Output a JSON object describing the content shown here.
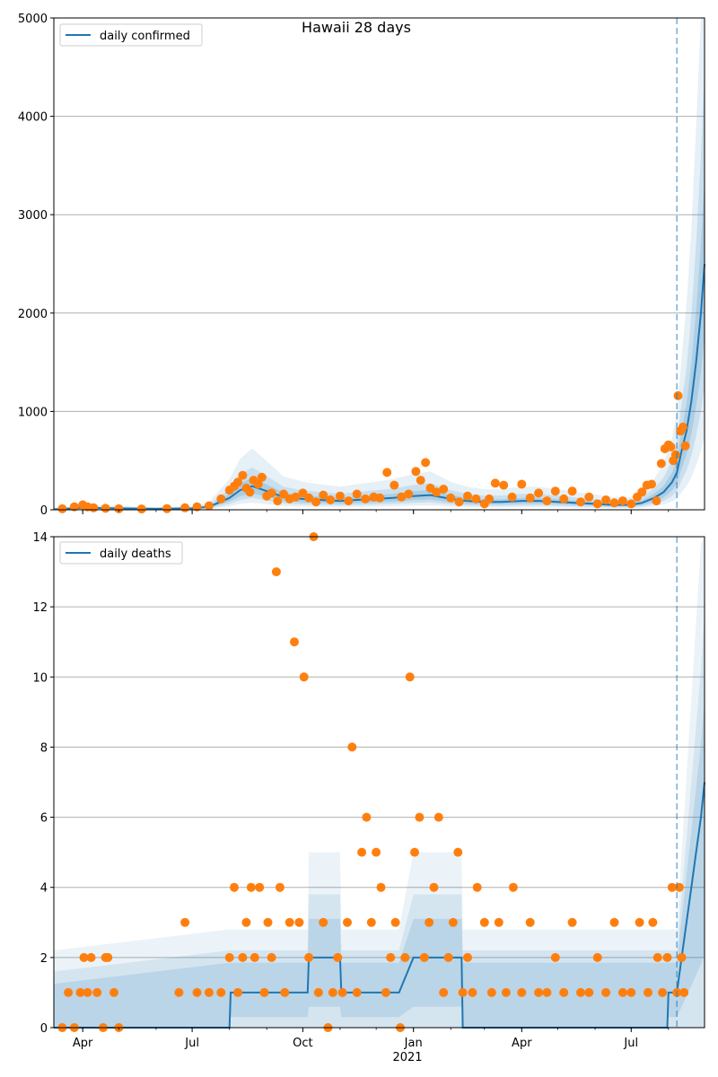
{
  "chart_data": [
    {
      "type": "line",
      "title": "Hawaii 28 days",
      "xlabel": "",
      "ylabel": "",
      "ylim": [
        0,
        5000
      ],
      "xlim": [
        "2020-03-08",
        "2021-08-31"
      ],
      "grid": "horizontal",
      "legend_position": "top-left",
      "yticks": [
        "0",
        "1000",
        "2000",
        "3000",
        "4000",
        "5000"
      ],
      "yticks_values": [
        0,
        1000,
        2000,
        3000,
        4000,
        5000
      ],
      "xticks": [],
      "forecast_start": "2021-08-08",
      "series": [
        {
          "name": "daily confirmed",
          "kind": "line",
          "color": "#1f77b4",
          "x": [
            "2020-03-08",
            "2020-04-01",
            "2020-05-01",
            "2020-06-01",
            "2020-07-01",
            "2020-07-15",
            "2020-08-01",
            "2020-08-10",
            "2020-08-20",
            "2020-09-01",
            "2020-09-15",
            "2020-10-01",
            "2020-10-15",
            "2020-11-01",
            "2020-11-15",
            "2020-12-01",
            "2020-12-15",
            "2021-01-01",
            "2021-01-15",
            "2021-02-01",
            "2021-02-15",
            "2021-03-01",
            "2021-03-15",
            "2021-04-01",
            "2021-04-15",
            "2021-05-01",
            "2021-05-15",
            "2021-06-01",
            "2021-06-15",
            "2021-07-01",
            "2021-07-10",
            "2021-07-20",
            "2021-07-28",
            "2021-08-04",
            "2021-08-08",
            "2021-08-12",
            "2021-08-16",
            "2021-08-20",
            "2021-08-24",
            "2021-08-28",
            "2021-08-31"
          ],
          "y": [
            5,
            20,
            15,
            10,
            15,
            30,
            120,
            200,
            240,
            190,
            130,
            110,
            100,
            90,
            100,
            110,
            120,
            140,
            150,
            110,
            90,
            80,
            80,
            90,
            90,
            80,
            70,
            60,
            50,
            50,
            70,
            120,
            180,
            280,
            380,
            600,
            800,
            1100,
            1500,
            2000,
            2500
          ]
        },
        {
          "name": "",
          "kind": "points",
          "color": "#ff7f0e",
          "x": [
            "2020-03-15",
            "2020-03-25",
            "2020-04-01",
            "2020-04-05",
            "2020-04-10",
            "2020-04-20",
            "2020-05-01",
            "2020-05-20",
            "2020-06-10",
            "2020-06-25",
            "2020-07-05",
            "2020-07-15",
            "2020-07-25",
            "2020-08-01",
            "2020-08-05",
            "2020-08-08",
            "2020-08-12",
            "2020-08-15",
            "2020-08-18",
            "2020-08-21",
            "2020-08-25",
            "2020-08-28",
            "2020-09-01",
            "2020-09-05",
            "2020-09-10",
            "2020-09-15",
            "2020-09-20",
            "2020-09-25",
            "2020-10-01",
            "2020-10-06",
            "2020-10-12",
            "2020-10-18",
            "2020-10-24",
            "2020-11-01",
            "2020-11-08",
            "2020-11-15",
            "2020-11-22",
            "2020-11-29",
            "2020-12-04",
            "2020-12-10",
            "2020-12-16",
            "2020-12-22",
            "2020-12-28",
            "2021-01-03",
            "2021-01-07",
            "2021-01-11",
            "2021-01-15",
            "2021-01-20",
            "2021-01-26",
            "2021-02-01",
            "2021-02-08",
            "2021-02-15",
            "2021-02-22",
            "2021-03-01",
            "2021-03-05",
            "2021-03-10",
            "2021-03-17",
            "2021-03-24",
            "2021-04-01",
            "2021-04-08",
            "2021-04-15",
            "2021-04-22",
            "2021-04-29",
            "2021-05-06",
            "2021-05-13",
            "2021-05-20",
            "2021-05-27",
            "2021-06-03",
            "2021-06-10",
            "2021-06-17",
            "2021-06-24",
            "2021-07-01",
            "2021-07-06",
            "2021-07-10",
            "2021-07-14",
            "2021-07-18",
            "2021-07-22",
            "2021-07-26",
            "2021-07-29",
            "2021-08-01",
            "2021-08-03",
            "2021-08-05",
            "2021-08-07",
            "2021-08-09",
            "2021-08-11",
            "2021-08-13",
            "2021-08-15"
          ],
          "y": [
            10,
            30,
            50,
            30,
            20,
            15,
            10,
            8,
            12,
            20,
            30,
            40,
            110,
            200,
            240,
            280,
            350,
            220,
            180,
            300,
            260,
            330,
            140,
            170,
            90,
            160,
            110,
            130,
            170,
            120,
            80,
            150,
            100,
            140,
            90,
            160,
            110,
            130,
            120,
            380,
            250,
            130,
            160,
            390,
            300,
            480,
            220,
            180,
            210,
            120,
            80,
            140,
            110,
            60,
            110,
            270,
            250,
            130,
            260,
            120,
            170,
            90,
            190,
            110,
            190,
            80,
            130,
            60,
            100,
            70,
            90,
            60,
            130,
            180,
            250,
            260,
            90,
            470,
            620,
            660,
            640,
            500,
            560,
            1160,
            800,
            840,
            650
          ]
        }
      ]
    },
    {
      "type": "line",
      "title": "",
      "xlabel": "",
      "ylabel": "",
      "ylim": [
        0,
        14
      ],
      "xlim": [
        "2020-03-08",
        "2021-08-31"
      ],
      "grid": "horizontal",
      "legend_position": "top-left",
      "yticks": [
        "0",
        "2",
        "4",
        "6",
        "8",
        "10",
        "12",
        "14"
      ],
      "yticks_values": [
        0,
        2,
        4,
        6,
        8,
        10,
        12,
        14
      ],
      "xticks": [
        "Apr",
        "Jul",
        "Oct",
        "Jan",
        "Apr",
        "Jul"
      ],
      "xticks_dates": [
        "2020-04-01",
        "2020-07-01",
        "2020-10-01",
        "2021-01-01",
        "2021-04-01",
        "2021-07-01"
      ],
      "year_label": "2021",
      "forecast_start": "2021-08-08",
      "series": [
        {
          "name": "daily deaths",
          "kind": "line",
          "color": "#1f77b4",
          "x": [
            "2020-03-08",
            "2020-08-01",
            "2020-08-02",
            "2020-10-05",
            "2020-10-06",
            "2020-11-01",
            "2020-11-02",
            "2020-12-20",
            "2021-01-01",
            "2021-02-10",
            "2021-02-11",
            "2021-07-31",
            "2021-08-01",
            "2021-08-08",
            "2021-08-12",
            "2021-08-16",
            "2021-08-20",
            "2021-08-24",
            "2021-08-28",
            "2021-08-31"
          ],
          "y": [
            0,
            0,
            1,
            1,
            2,
            2,
            1,
            1,
            2,
            2,
            0,
            0,
            1,
            1,
            2,
            3,
            4,
            5,
            6,
            7
          ]
        },
        {
          "name": "",
          "kind": "points",
          "color": "#ff7f0e",
          "x": [
            "2020-03-15",
            "2020-03-20",
            "2020-03-25",
            "2020-03-30",
            "2020-04-02",
            "2020-04-05",
            "2020-04-08",
            "2020-04-13",
            "2020-04-18",
            "2020-04-20",
            "2020-04-22",
            "2020-04-27",
            "2020-05-01",
            "2020-06-20",
            "2020-06-25",
            "2020-07-05",
            "2020-07-15",
            "2020-07-25",
            "2020-08-01",
            "2020-08-05",
            "2020-08-08",
            "2020-08-12",
            "2020-08-15",
            "2020-08-19",
            "2020-08-22",
            "2020-08-26",
            "2020-08-30",
            "2020-09-02",
            "2020-09-05",
            "2020-09-09",
            "2020-09-12",
            "2020-09-16",
            "2020-09-20",
            "2020-09-24",
            "2020-09-28",
            "2020-10-02",
            "2020-10-06",
            "2020-10-10",
            "2020-10-14",
            "2020-10-18",
            "2020-10-22",
            "2020-10-26",
            "2020-10-30",
            "2020-11-03",
            "2020-11-07",
            "2020-11-11",
            "2020-11-15",
            "2020-11-19",
            "2020-11-23",
            "2020-11-27",
            "2020-12-01",
            "2020-12-05",
            "2020-12-09",
            "2020-12-13",
            "2020-12-17",
            "2020-12-21",
            "2020-12-25",
            "2020-12-29",
            "2021-01-02",
            "2021-01-06",
            "2021-01-10",
            "2021-01-14",
            "2021-01-18",
            "2021-01-22",
            "2021-01-26",
            "2021-01-30",
            "2021-02-03",
            "2021-02-07",
            "2021-02-11",
            "2021-02-15",
            "2021-02-19",
            "2021-02-23",
            "2021-03-01",
            "2021-03-07",
            "2021-03-13",
            "2021-03-19",
            "2021-03-25",
            "2021-04-01",
            "2021-04-08",
            "2021-04-15",
            "2021-04-22",
            "2021-04-29",
            "2021-05-06",
            "2021-05-13",
            "2021-05-20",
            "2021-05-27",
            "2021-06-03",
            "2021-06-10",
            "2021-06-17",
            "2021-06-24",
            "2021-07-01",
            "2021-07-08",
            "2021-07-15",
            "2021-07-19",
            "2021-07-23",
            "2021-07-27",
            "2021-07-31",
            "2021-08-04",
            "2021-08-08",
            "2021-08-10",
            "2021-08-12",
            "2021-08-14"
          ],
          "y": [
            0,
            1,
            0,
            1,
            2,
            1,
            2,
            1,
            0,
            2,
            2,
            1,
            0,
            1,
            3,
            1,
            1,
            1,
            2,
            4,
            1,
            2,
            3,
            4,
            2,
            4,
            1,
            3,
            2,
            13,
            4,
            1,
            3,
            11,
            3,
            10,
            2,
            14,
            1,
            3,
            0,
            1,
            2,
            1,
            3,
            8,
            1,
            5,
            6,
            3,
            5,
            4,
            1,
            2,
            3,
            0,
            2,
            10,
            5,
            6,
            2,
            3,
            4,
            6,
            1,
            2,
            3,
            5,
            1,
            2,
            1,
            4,
            3,
            1,
            3,
            1,
            4,
            1,
            3,
            1,
            1,
            2,
            1,
            3,
            1,
            1,
            2,
            1,
            3,
            1,
            1,
            3,
            1,
            3,
            2,
            1,
            2,
            4,
            1,
            4,
            2,
            1
          ]
        }
      ]
    }
  ]
}
